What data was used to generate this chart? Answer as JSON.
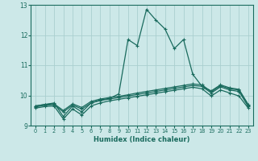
{
  "xlabel": "Humidex (Indice chaleur)",
  "bg_color": "#cce8e8",
  "grid_color": "#aacfcf",
  "line_color": "#1a6b5e",
  "xlim": [
    -0.5,
    23.5
  ],
  "ylim": [
    9.0,
    13.0
  ],
  "yticks": [
    9,
    10,
    11,
    12,
    13
  ],
  "xticks": [
    0,
    1,
    2,
    3,
    4,
    5,
    6,
    7,
    8,
    9,
    10,
    11,
    12,
    13,
    14,
    15,
    16,
    17,
    18,
    19,
    20,
    21,
    22,
    23
  ],
  "series1_x": [
    0,
    1,
    2,
    3,
    4,
    5,
    6,
    7,
    8,
    9,
    10,
    11,
    12,
    13,
    14,
    15,
    16,
    17,
    18,
    19,
    20,
    21,
    22,
    23
  ],
  "series1_y": [
    9.65,
    9.7,
    9.75,
    9.3,
    9.65,
    9.45,
    9.75,
    9.85,
    9.9,
    10.05,
    11.85,
    11.65,
    12.85,
    12.5,
    12.2,
    11.55,
    11.85,
    10.7,
    10.3,
    10.15,
    10.35,
    10.25,
    10.2,
    9.7
  ],
  "series2_x": [
    0,
    1,
    2,
    3,
    4,
    5,
    6,
    7,
    8,
    9,
    10,
    11,
    12,
    13,
    14,
    15,
    16,
    17,
    18,
    19,
    20,
    21,
    22,
    23
  ],
  "series2_y": [
    9.65,
    9.7,
    9.72,
    9.5,
    9.72,
    9.6,
    9.8,
    9.88,
    9.93,
    9.97,
    10.02,
    10.08,
    10.13,
    10.18,
    10.23,
    10.28,
    10.33,
    10.38,
    10.35,
    10.12,
    10.32,
    10.22,
    10.18,
    9.68
  ],
  "series3_x": [
    0,
    1,
    2,
    3,
    4,
    5,
    6,
    7,
    8,
    9,
    10,
    11,
    12,
    13,
    14,
    15,
    16,
    17,
    18,
    19,
    20,
    21,
    22,
    23
  ],
  "series3_y": [
    9.62,
    9.67,
    9.7,
    9.45,
    9.68,
    9.55,
    9.75,
    9.83,
    9.88,
    9.93,
    9.98,
    10.03,
    10.08,
    10.13,
    10.18,
    10.23,
    10.28,
    10.33,
    10.3,
    10.08,
    10.28,
    10.18,
    10.13,
    9.63
  ],
  "series4_x": [
    0,
    1,
    2,
    3,
    4,
    5,
    6,
    7,
    8,
    9,
    10,
    11,
    12,
    13,
    14,
    15,
    16,
    17,
    18,
    19,
    20,
    21,
    22,
    23
  ],
  "series4_y": [
    9.58,
    9.63,
    9.65,
    9.22,
    9.55,
    9.35,
    9.65,
    9.75,
    9.82,
    9.87,
    9.92,
    9.97,
    10.02,
    10.07,
    10.12,
    10.17,
    10.22,
    10.27,
    10.22,
    9.98,
    10.18,
    10.08,
    9.98,
    9.58
  ]
}
